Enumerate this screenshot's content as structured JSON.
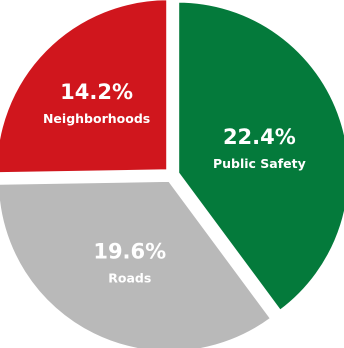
{
  "chart_data": {
    "type": "pie",
    "slices": [
      {
        "label": "Public Safety",
        "value": 22.4,
        "display": "22.4%",
        "color": "#047a3b"
      },
      {
        "label": "Roads",
        "value": 19.6,
        "display": "19.6%",
        "color": "#b9b9b9"
      },
      {
        "label": "Neighborhoods",
        "value": 14.2,
        "display": "14.2%",
        "color": "#d0161d"
      }
    ],
    "title": "",
    "legend": "none",
    "labels": "inside"
  }
}
